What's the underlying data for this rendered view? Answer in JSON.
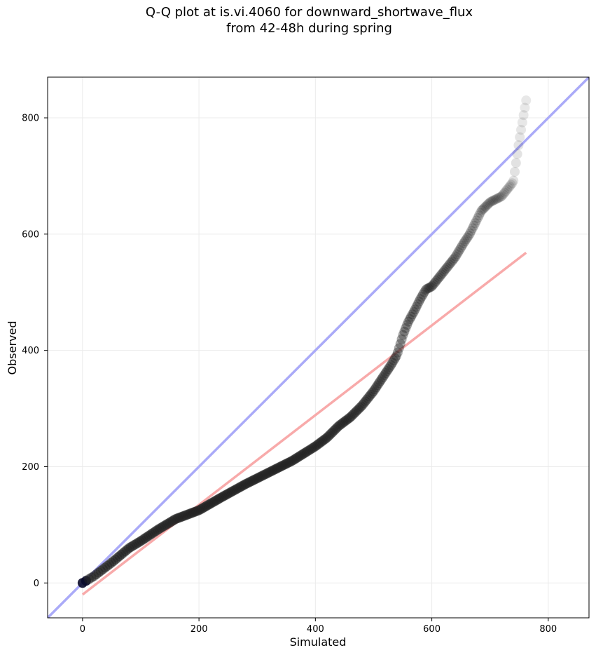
{
  "chart_data": {
    "type": "scatter",
    "title": [
      "Q-Q plot at is.vi.4060 for downward_shortwave_flux",
      "from 42-48h during spring"
    ],
    "xlabel": "Simulated",
    "ylabel": "Observed",
    "xlim": [
      -60,
      870
    ],
    "ylim": [
      -60,
      870
    ],
    "xticks": [
      0,
      200,
      400,
      600,
      800
    ],
    "yticks": [
      0,
      200,
      400,
      600,
      800
    ],
    "grid": true,
    "colors": {
      "points": "#222222",
      "identity_line": "#aaaaf8",
      "fit_line": "#f8aaaa",
      "first_points": "#0a0a2a"
    },
    "identity_line": {
      "x": [
        -60,
        870
      ],
      "y": [
        -60,
        870
      ]
    },
    "fit_line": {
      "x": [
        0,
        762
      ],
      "y": [
        -20,
        568
      ]
    },
    "quantile_curve": {
      "x": [
        0,
        20,
        50,
        80,
        100,
        130,
        160,
        200,
        240,
        280,
        320,
        360,
        400,
        420,
        440,
        460,
        480,
        500,
        520,
        530,
        540,
        545,
        550,
        555,
        560,
        570,
        580,
        590,
        600,
        620,
        640,
        655,
        665,
        675,
        685,
        700,
        720,
        740,
        750,
        762
      ],
      "y": [
        0,
        12,
        35,
        60,
        72,
        92,
        110,
        125,
        148,
        170,
        190,
        210,
        235,
        250,
        270,
        285,
        305,
        330,
        360,
        375,
        392,
        408,
        425,
        438,
        450,
        468,
        488,
        505,
        510,
        535,
        560,
        585,
        600,
        620,
        640,
        655,
        665,
        690,
        760,
        830
      ]
    },
    "n_points": 300
  }
}
